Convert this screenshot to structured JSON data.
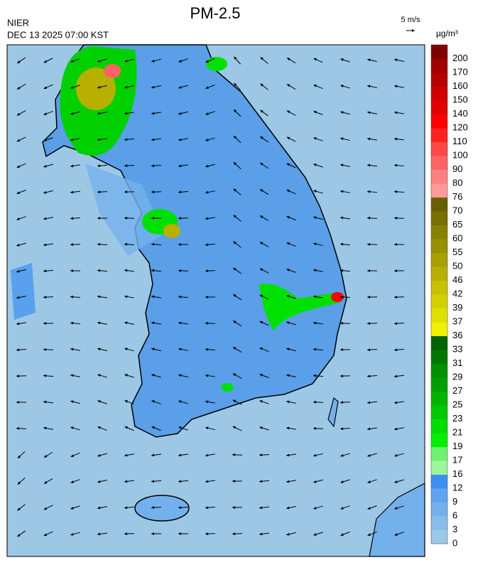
{
  "header": {
    "title": "PM-2.5",
    "agency": "NIER",
    "datetime": "DEC 13 2025 07:00 KST",
    "wind_scale": "5 m/s"
  },
  "legend": {
    "unit": "µg/m³",
    "ticks": [
      0,
      3,
      6,
      9,
      12,
      16,
      17,
      19,
      21,
      23,
      25,
      27,
      29,
      31,
      33,
      36,
      37,
      39,
      42,
      46,
      50,
      55,
      60,
      65,
      70,
      76,
      80,
      90,
      100,
      110,
      120,
      140,
      150,
      160,
      170,
      200
    ],
    "colors": [
      "#9cc8e8",
      "#87bdea",
      "#74b1ec",
      "#5ea4ee",
      "#3d8ff0",
      "#9cf79c",
      "#70f070",
      "#00f000",
      "#00dd00",
      "#00c800",
      "#00b400",
      "#00a000",
      "#009000",
      "#007800",
      "#006400",
      "#f0f000",
      "#e0e000",
      "#d4d000",
      "#c8c000",
      "#b8b000",
      "#a8a000",
      "#989000",
      "#888000",
      "#787000",
      "#686000",
      "#ff9a9a",
      "#ff8080",
      "#ff6464",
      "#ff4848",
      "#ff2020",
      "#ff0000",
      "#e00000",
      "#d00000",
      "#b80000",
      "#a00000",
      "#800000"
    ]
  }
}
